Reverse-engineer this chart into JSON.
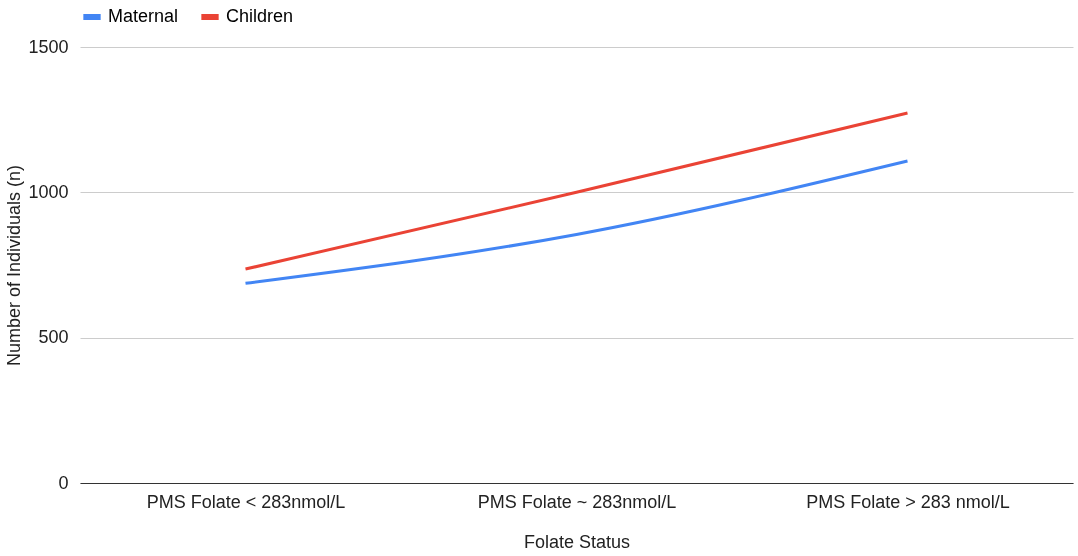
{
  "chart_data": {
    "type": "line",
    "xlabel": "Folate Status",
    "ylabel": "Number of Individuals (n)",
    "categories": [
      "PMS Folate < 283nmol/L",
      "PMS Folate ~ 283nmol/L",
      "PMS Folate > 283 nmol/L"
    ],
    "series": [
      {
        "name": "Maternal",
        "color": "#4285f4",
        "values": [
          687,
          855,
          1108
        ]
      },
      {
        "name": "Children",
        "color": "#ea4335",
        "values": [
          736,
          1000,
          1273
        ]
      }
    ],
    "ylim": [
      0,
      1500
    ],
    "yticks": [
      0,
      500,
      1000,
      1500
    ],
    "grid": "y",
    "legend": "top",
    "marker": "none",
    "line_style": "solid"
  }
}
